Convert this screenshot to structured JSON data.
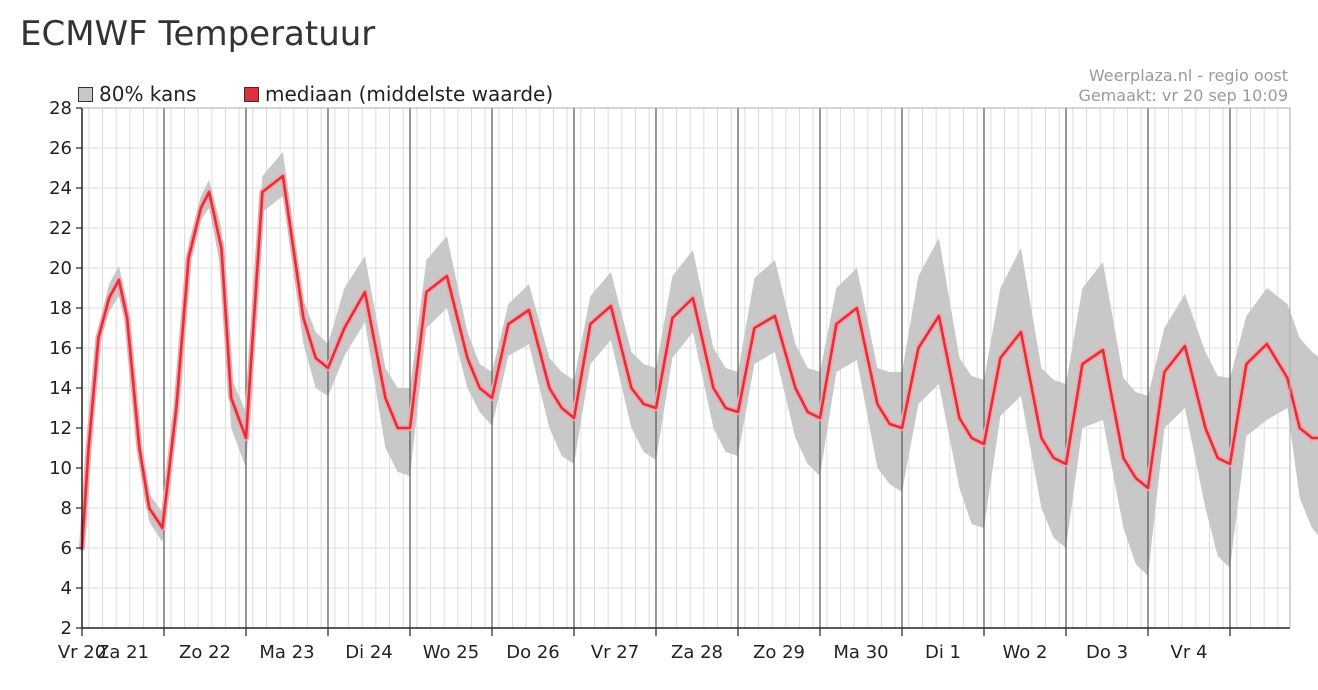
{
  "page": {
    "title": "ECMWF Temperatuur",
    "source": "Weerplaza.nl - regio oost",
    "made": "Gemaakt: vr 20 sep 10:09"
  },
  "legend": {
    "band_label": "80% kans",
    "median_label": "mediaan (middelste waarde)"
  },
  "colors": {
    "band": "#c8c8c8",
    "median": "#e0303c",
    "median_glow": "#f4a6aa"
  },
  "chart_data": {
    "type": "line",
    "title": "ECMWF Temperatuur",
    "xlabel": "",
    "ylabel": "",
    "ylim": [
      2,
      28
    ],
    "yticks": [
      2,
      4,
      6,
      8,
      10,
      12,
      14,
      16,
      18,
      20,
      22,
      24,
      26,
      28
    ],
    "xlim": [
      0,
      15.1
    ],
    "grid": true,
    "legend_position": "top-left",
    "day_labels": [
      "Vr 20",
      "Za 21",
      "Zo 22",
      "Ma 23",
      "Di 24",
      "Wo 25",
      "Do 26",
      "Vr 27",
      "Za 28",
      "Zo 29",
      "Ma 30",
      "Di 1",
      "Wo 2",
      "Do 3",
      "Vr 4"
    ],
    "day_starts": [
      -0.75,
      0,
      1,
      2,
      3,
      4,
      5,
      6,
      7,
      8,
      9,
      10,
      11,
      12,
      13,
      14
    ],
    "series": [
      {
        "name": "mediaan (middelste waarde)",
        "x": [
          0.0,
          0.08,
          0.2,
          0.33,
          0.45,
          0.55,
          0.7,
          0.82,
          0.98,
          1.15,
          1.3,
          1.45,
          1.55,
          1.7,
          1.82,
          2.0,
          2.2,
          2.45,
          2.7,
          2.85,
          3.0,
          3.2,
          3.45,
          3.7,
          3.85,
          4.0,
          4.2,
          4.45,
          4.7,
          4.85,
          5.0,
          5.2,
          5.45,
          5.7,
          5.85,
          6.0,
          6.2,
          6.45,
          6.7,
          6.85,
          7.0,
          7.2,
          7.45,
          7.7,
          7.85,
          8.0,
          8.2,
          8.45,
          8.7,
          8.85,
          9.0,
          9.2,
          9.45,
          9.7,
          9.85,
          10.0,
          10.2,
          10.45,
          10.7,
          10.85,
          11.0,
          11.2,
          11.45,
          11.7,
          11.85,
          12.0,
          12.2,
          12.45,
          12.7,
          12.85,
          13.0,
          13.2,
          13.45,
          13.7,
          13.85,
          14.0,
          14.2,
          14.45,
          14.7,
          14.85,
          15.0,
          15.1
        ],
        "values": [
          6.0,
          11.0,
          16.5,
          18.5,
          19.4,
          17.5,
          11.0,
          8.0,
          7.0,
          13.0,
          20.5,
          23.0,
          23.8,
          21.0,
          13.5,
          11.5,
          23.8,
          24.6,
          17.5,
          15.5,
          15.0,
          17.0,
          18.8,
          13.5,
          12.0,
          12.0,
          18.8,
          19.6,
          15.5,
          14.0,
          13.5,
          17.2,
          17.9,
          14.0,
          13.0,
          12.5,
          17.2,
          18.1,
          14.0,
          13.2,
          13.0,
          17.5,
          18.5,
          14.0,
          13.0,
          12.8,
          17.0,
          17.6,
          14.0,
          12.8,
          12.5,
          17.2,
          18.0,
          13.2,
          12.2,
          12.0,
          16.0,
          17.6,
          12.5,
          11.5,
          11.2,
          15.5,
          16.8,
          11.5,
          10.5,
          10.2,
          15.2,
          15.9,
          10.5,
          9.5,
          9.0,
          14.8,
          16.1,
          12.0,
          10.5,
          10.2,
          15.2,
          16.2,
          14.5,
          12.0,
          11.5,
          11.5
        ]
      },
      {
        "name": "80% kans",
        "x": [
          0.0,
          0.08,
          0.2,
          0.33,
          0.45,
          0.55,
          0.7,
          0.82,
          0.98,
          1.15,
          1.3,
          1.45,
          1.55,
          1.7,
          1.82,
          2.0,
          2.2,
          2.45,
          2.7,
          2.85,
          3.0,
          3.2,
          3.45,
          3.7,
          3.85,
          4.0,
          4.2,
          4.45,
          4.7,
          4.85,
          5.0,
          5.2,
          5.45,
          5.7,
          5.85,
          6.0,
          6.2,
          6.45,
          6.7,
          6.85,
          7.0,
          7.2,
          7.45,
          7.7,
          7.85,
          8.0,
          8.2,
          8.45,
          8.7,
          8.85,
          9.0,
          9.2,
          9.45,
          9.7,
          9.85,
          10.0,
          10.2,
          10.45,
          10.7,
          10.85,
          11.0,
          11.2,
          11.45,
          11.7,
          11.85,
          12.0,
          12.2,
          12.45,
          12.7,
          12.85,
          13.0,
          13.2,
          13.45,
          13.7,
          13.85,
          14.0,
          14.2,
          14.45,
          14.7,
          14.85,
          15.0,
          15.1
        ],
        "lower": [
          5.5,
          10.5,
          16.0,
          17.8,
          18.6,
          16.8,
          10.2,
          7.3,
          6.3,
          12.0,
          19.8,
          22.4,
          23.0,
          19.8,
          12.0,
          10.0,
          22.8,
          23.6,
          16.2,
          14.0,
          13.6,
          15.6,
          17.3,
          11.0,
          9.8,
          9.6,
          17.0,
          18.0,
          14.0,
          12.8,
          12.1,
          15.6,
          16.2,
          12.0,
          10.6,
          10.2,
          15.2,
          16.4,
          12.0,
          10.8,
          10.4,
          15.5,
          16.8,
          12.0,
          10.8,
          10.6,
          15.2,
          15.8,
          11.5,
          10.2,
          9.6,
          14.8,
          15.4,
          10.0,
          9.2,
          8.8,
          13.2,
          14.2,
          9.0,
          7.2,
          7.0,
          12.6,
          13.6,
          8.0,
          6.5,
          6.0,
          12.0,
          12.4,
          7.0,
          5.2,
          4.6,
          12.0,
          13.0,
          8.0,
          5.6,
          5.0,
          11.6,
          12.4,
          13.0,
          8.5,
          7.0,
          6.5
        ],
        "upper": [
          7.0,
          11.8,
          17.0,
          19.2,
          20.1,
          18.3,
          11.9,
          8.7,
          7.8,
          14.0,
          21.2,
          23.6,
          24.4,
          22.0,
          14.5,
          12.8,
          24.6,
          25.8,
          18.4,
          16.8,
          16.2,
          19.0,
          20.6,
          15.0,
          14.0,
          14.0,
          20.4,
          21.6,
          16.8,
          15.2,
          14.8,
          18.2,
          19.2,
          15.5,
          14.8,
          14.4,
          18.6,
          19.8,
          15.8,
          15.2,
          15.0,
          19.6,
          20.9,
          16.0,
          15.0,
          14.8,
          19.5,
          20.4,
          16.2,
          15.0,
          14.8,
          19.0,
          20.0,
          15.0,
          14.8,
          14.8,
          19.6,
          21.5,
          15.5,
          14.6,
          14.4,
          19.0,
          21.0,
          15.0,
          14.4,
          14.2,
          19.0,
          20.3,
          14.5,
          13.8,
          13.6,
          17.0,
          18.7,
          15.8,
          14.6,
          14.5,
          17.6,
          19.0,
          18.2,
          16.5,
          15.8,
          15.5
        ]
      }
    ]
  }
}
